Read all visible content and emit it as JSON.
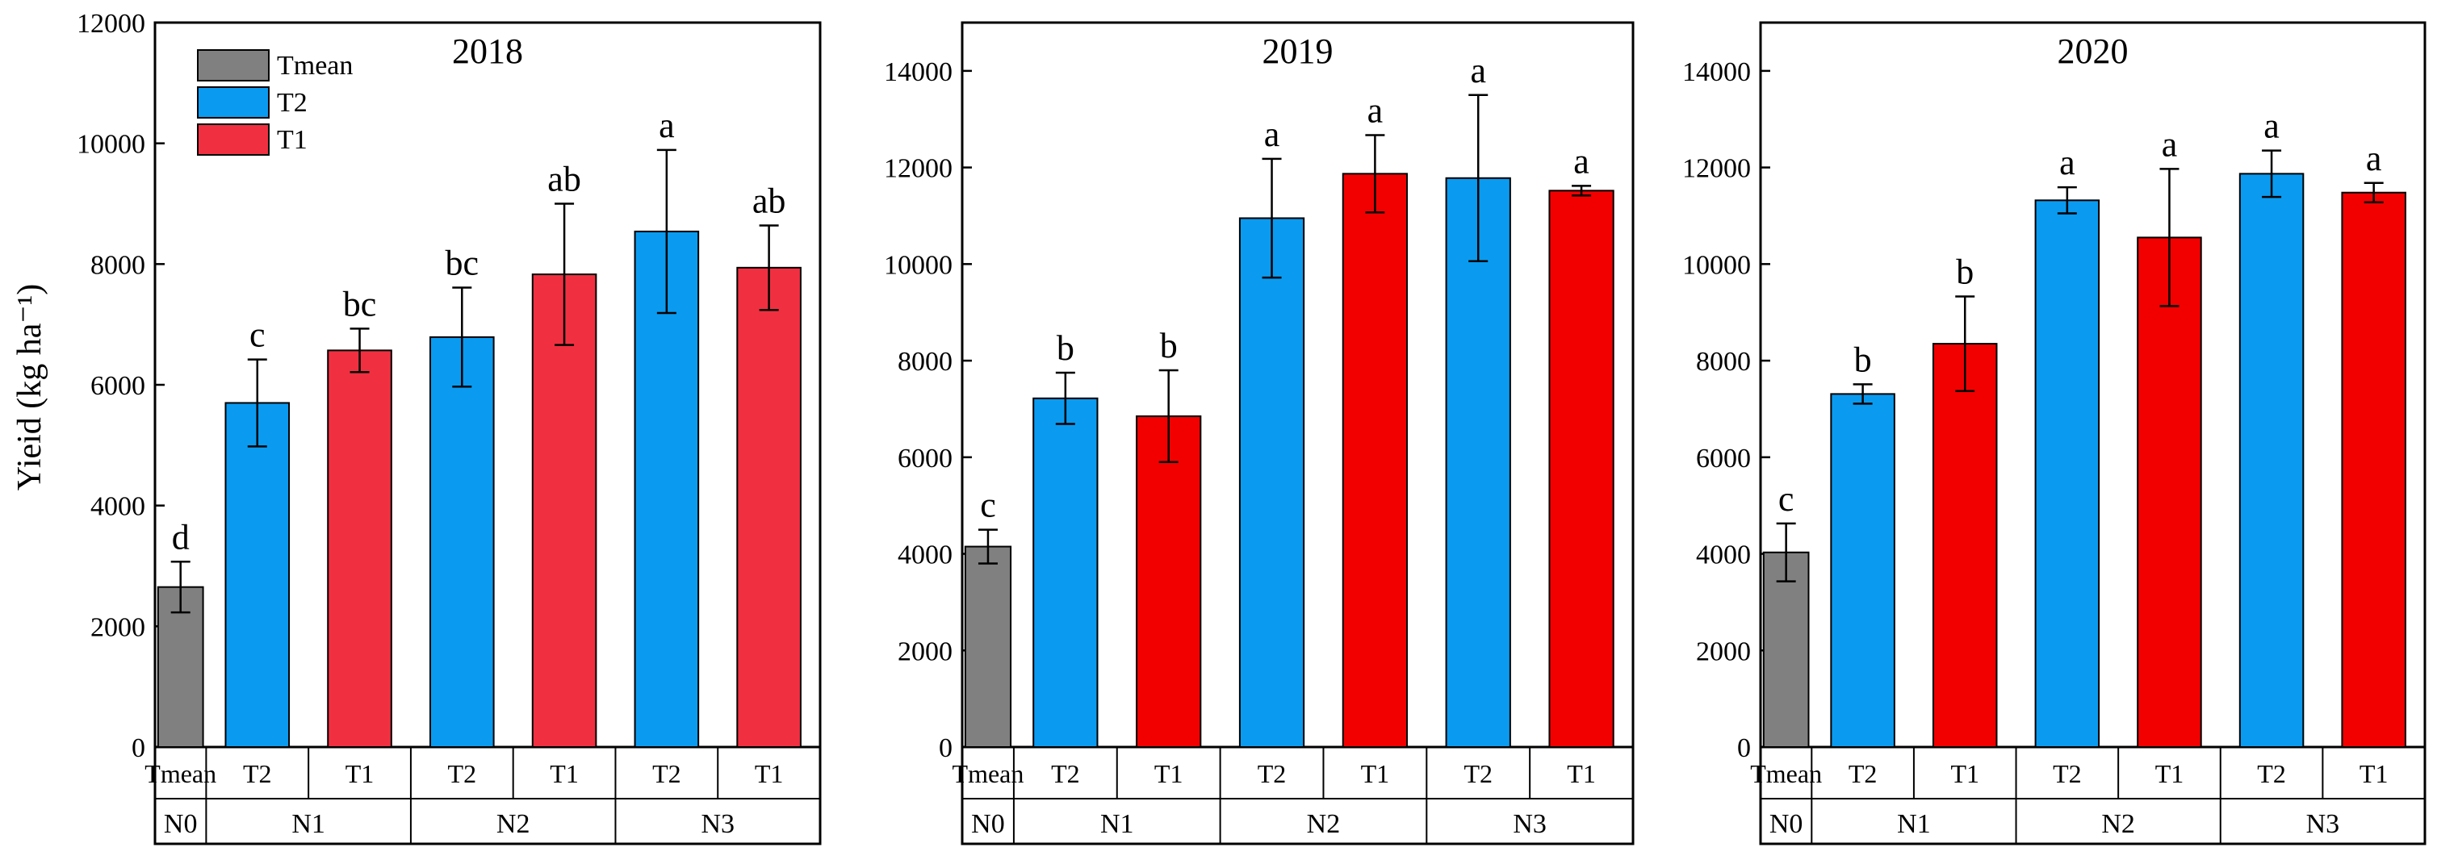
{
  "colors": {
    "Tmean": "#808080",
    "T2": "#0A9BF0",
    "T1_2018": "#F03040",
    "T1": "#F20000"
  },
  "legend": {
    "items": [
      {
        "label": "Tmean",
        "key": "Tmean"
      },
      {
        "label": "T2",
        "key": "T2"
      },
      {
        "label": "T1",
        "key": "T1_2018"
      }
    ]
  },
  "chart_data": [
    {
      "type": "bar",
      "title": "2018",
      "ylabel": "Yieid (kg ha⁻¹)",
      "ylim": [
        0,
        12000
      ],
      "yticks": [
        0,
        2000,
        4000,
        6000,
        8000,
        10000,
        12000
      ],
      "categories": [
        "Tmean",
        "T2",
        "T1",
        "T2",
        "T1",
        "T2",
        "T1"
      ],
      "groups": [
        {
          "label": "N0",
          "span": 1
        },
        {
          "label": "N1",
          "span": 2
        },
        {
          "label": "N2",
          "span": 2
        },
        {
          "label": "N3",
          "span": 2
        }
      ],
      "bar_colors": [
        "Tmean",
        "T2",
        "T1_2018",
        "T2",
        "T1_2018",
        "T2",
        "T1_2018"
      ],
      "values": [
        2650,
        5700,
        6570,
        6790,
        7830,
        8540,
        7940
      ],
      "errors": [
        420,
        720,
        360,
        820,
        1170,
        1350,
        700
      ],
      "letters": [
        "d",
        "c",
        "bc",
        "bc",
        "ab",
        "a",
        "ab"
      ]
    },
    {
      "type": "bar",
      "title": "2019",
      "ylim": [
        0,
        15000
      ],
      "yticks": [
        0,
        2000,
        4000,
        6000,
        8000,
        10000,
        12000,
        14000
      ],
      "categories": [
        "Tmean",
        "T2",
        "T1",
        "T2",
        "T1",
        "T2",
        "T1"
      ],
      "groups": [
        {
          "label": "N0",
          "span": 1
        },
        {
          "label": "N1",
          "span": 2
        },
        {
          "label": "N2",
          "span": 2
        },
        {
          "label": "N3",
          "span": 2
        }
      ],
      "bar_colors": [
        "Tmean",
        "T2",
        "T1",
        "T2",
        "T1",
        "T2",
        "T1"
      ],
      "values": [
        4150,
        7220,
        6850,
        10950,
        11870,
        11780,
        11520
      ],
      "errors": [
        350,
        530,
        950,
        1230,
        800,
        1720,
        100
      ],
      "letters": [
        "c",
        "b",
        "b",
        "a",
        "a",
        "a",
        "a"
      ]
    },
    {
      "type": "bar",
      "title": "2020",
      "ylim": [
        0,
        15000
      ],
      "yticks": [
        0,
        2000,
        4000,
        6000,
        8000,
        10000,
        12000,
        14000
      ],
      "categories": [
        "Tmean",
        "T2",
        "T1",
        "T2",
        "T1",
        "T2",
        "T1"
      ],
      "groups": [
        {
          "label": "N0",
          "span": 1
        },
        {
          "label": "N1",
          "span": 2
        },
        {
          "label": "N2",
          "span": 2
        },
        {
          "label": "N3",
          "span": 2
        }
      ],
      "bar_colors": [
        "Tmean",
        "T2",
        "T1",
        "T2",
        "T1",
        "T2",
        "T1"
      ],
      "values": [
        4030,
        7310,
        8350,
        11320,
        10550,
        11870,
        11480
      ],
      "errors": [
        600,
        200,
        980,
        270,
        1420,
        480,
        200
      ],
      "letters": [
        "c",
        "b",
        "b",
        "a",
        "a",
        "a",
        "a"
      ]
    }
  ]
}
